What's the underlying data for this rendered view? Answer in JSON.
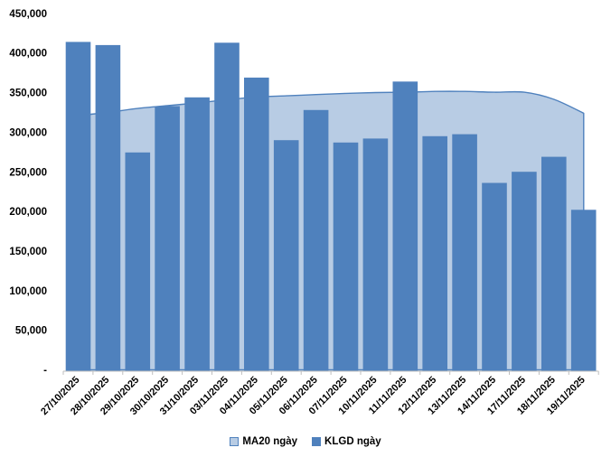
{
  "chart_data": {
    "type": "bar",
    "subtype": "area-behind-bars-combo",
    "title": "",
    "xlabel": "",
    "ylabel": "",
    "categories": [
      "27/10/2025",
      "28/10/2025",
      "29/10/2025",
      "30/10/2025",
      "31/10/2025",
      "03/11/2025",
      "04/11/2025",
      "05/11/2025",
      "06/11/2025",
      "07/11/2025",
      "10/11/2025",
      "11/11/2025",
      "12/11/2025",
      "13/11/2025",
      "14/11/2025",
      "17/11/2025",
      "18/11/2025",
      "19/11/2025"
    ],
    "series": [
      {
        "name": "MA20 ngày",
        "type": "area",
        "fill_color": "#B8CCE4",
        "line_color": "#4F81BD",
        "values": [
          321000,
          325000,
          330000,
          333500,
          337000,
          341000,
          344500,
          346000,
          347500,
          349000,
          350000,
          350500,
          351500,
          351500,
          350500,
          350500,
          341500,
          324000
        ]
      },
      {
        "name": "KLGD ngày",
        "type": "column",
        "fill_color": "#4F81BD",
        "values": [
          414000,
          410000,
          274500,
          333000,
          344000,
          413000,
          369000,
          290000,
          328000,
          287000,
          292000,
          364000,
          295000,
          297500,
          236000,
          250000,
          269000,
          202000
        ]
      }
    ],
    "ylim": [
      0,
      450000
    ],
    "yticks": {
      "values": [
        0,
        50000,
        100000,
        150000,
        200000,
        250000,
        300000,
        350000,
        400000,
        450000
      ],
      "labels": [
        "-",
        "50,000",
        "100,000",
        "150,000",
        "200,000",
        "250,000",
        "300,000",
        "350,000",
        "400,000",
        "450,000"
      ]
    },
    "grid": false,
    "legend_position": "bottom",
    "x_label_rotation_deg": -45
  },
  "legend": {
    "items": [
      {
        "label": "MA20 ngày",
        "swatch": "light-blue-outlined-square-icon"
      },
      {
        "label": "KLGD ngày",
        "swatch": "dark-blue-square-icon"
      }
    ]
  },
  "style": {
    "axis_color": "#BFBFBF",
    "text_color": "#000000",
    "background": "#FFFFFF",
    "bar_color": "#4F81BD",
    "area_fill": "#B8CCE4",
    "area_line": "#4F81BD"
  }
}
